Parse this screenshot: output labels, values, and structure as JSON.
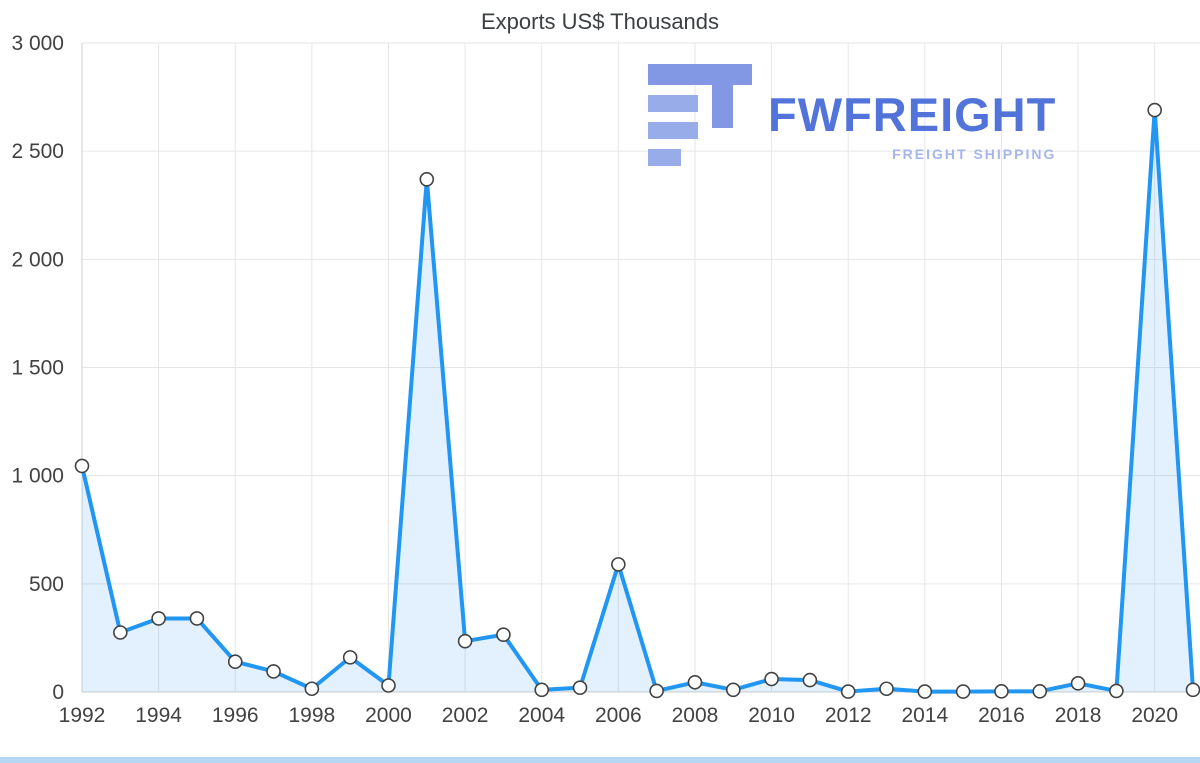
{
  "watermark": {
    "brand": "FWFREIGHT",
    "tagline": "FREIGHT SHIPPING",
    "brand_color": "#4b6fd9",
    "tagline_color": "#a2b4ec",
    "icon_color_dark": "#7d94e4",
    "icon_color_light": "#94a9ea"
  },
  "chart_data": {
    "type": "area",
    "title": "Exports US$ Thousands",
    "xlabel": "",
    "ylabel": "",
    "x": [
      1992,
      1993,
      1994,
      1995,
      1996,
      1997,
      1998,
      1999,
      2000,
      2001,
      2002,
      2003,
      2004,
      2005,
      2006,
      2007,
      2008,
      2009,
      2010,
      2011,
      2012,
      2013,
      2014,
      2015,
      2016,
      2017,
      2018,
      2019,
      2020,
      2021
    ],
    "values": [
      1045,
      275,
      340,
      340,
      140,
      95,
      15,
      160,
      30,
      2370,
      235,
      265,
      10,
      20,
      590,
      5,
      45,
      10,
      60,
      55,
      2,
      15,
      2,
      2,
      3,
      3,
      40,
      5,
      2690,
      10
    ],
    "ylim": [
      0,
      3000
    ],
    "yticks": [
      0,
      500,
      1000,
      1500,
      2000,
      2500,
      3000
    ],
    "ytick_labels": [
      "0",
      "500",
      "1 000",
      "1 500",
      "2 000",
      "2 500",
      "3 000"
    ],
    "xticks": [
      1992,
      1994,
      1996,
      1998,
      2000,
      2002,
      2004,
      2006,
      2008,
      2010,
      2012,
      2014,
      2016,
      2018,
      2020
    ],
    "grid": true,
    "legend": false,
    "line_color": "#2196f3",
    "area_opacity": 0.13,
    "marker": "white-circle-dark-outline",
    "grid_color": "#e6e6e6",
    "axis_color": "#cfcfcf",
    "tick_label_color": "#424242"
  }
}
